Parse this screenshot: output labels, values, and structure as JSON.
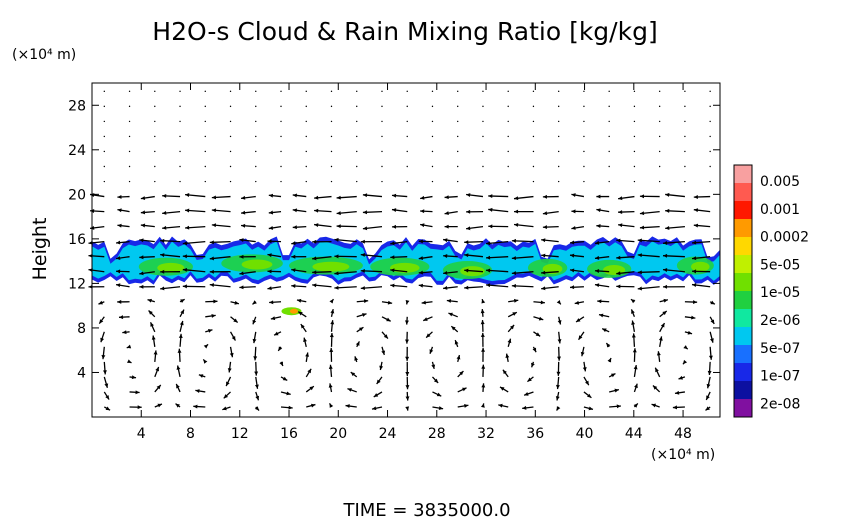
{
  "chart_data": {
    "type": "heatmap",
    "title": "H2O-s Cloud & Rain Mixing Ratio [kg/kg]",
    "ylabel": "Height",
    "x_unit_label": "(×10⁴ m)",
    "y_unit_label": "(×10⁴ m)",
    "xlim": [
      0,
      51
    ],
    "ylim": [
      0,
      30
    ],
    "x_ticks": [
      4,
      8,
      12,
      16,
      20,
      24,
      28,
      32,
      36,
      40,
      44,
      48
    ],
    "y_ticks": [
      4,
      8,
      12,
      16,
      20,
      24,
      28
    ],
    "colorbar": {
      "labels": [
        "0.005",
        "0.001",
        "0.0002",
        "5e-05",
        "1e-05",
        "2e-06",
        "5e-07",
        "1e-07",
        "2e-08"
      ],
      "colors": [
        "#f8a0a0",
        "#ff5a50",
        "#ff1800",
        "#ff9a00",
        "#ffd800",
        "#c0f000",
        "#70e000",
        "#20d040",
        "#10e8a0",
        "#00c8f0",
        "#1870ff",
        "#1828e8",
        "#0c10a0",
        "#8010a0"
      ]
    },
    "cloud_band": {
      "y_bottom": 12,
      "y_top": 16,
      "x_start": 0,
      "x_end": 51
    },
    "footer": "TIME = 3835000.0"
  }
}
